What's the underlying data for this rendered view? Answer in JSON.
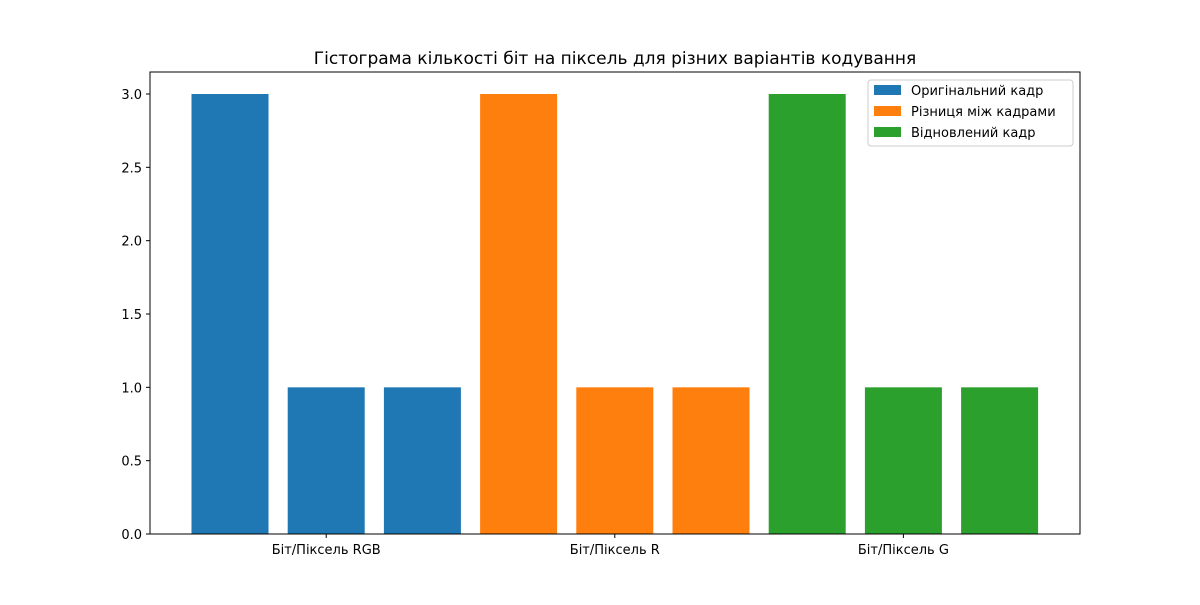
{
  "chart_data": {
    "type": "bar",
    "title": "Гістограма кількості біт на піксель для різних варіантів кодування",
    "xlabel": "",
    "ylabel": "",
    "ylim": [
      0,
      3.15
    ],
    "yticks": [
      "0.0",
      "0.5",
      "1.0",
      "1.5",
      "2.0",
      "2.5",
      "3.0"
    ],
    "ytick_values": [
      0,
      0.5,
      1.0,
      1.5,
      2.0,
      2.5,
      3.0
    ],
    "categories": [
      "Біт/Піксель RGB",
      "Біт/Піксель R",
      "Біт/Піксель G"
    ],
    "legend_position": "top-right",
    "grid": false,
    "series": [
      {
        "name": "Оригінальний кадр",
        "color": "#1f77b4",
        "values": [
          3,
          1,
          1
        ]
      },
      {
        "name": "Різниця між кадрами",
        "color": "#ff7f0e",
        "values": [
          3,
          1,
          1
        ]
      },
      {
        "name": "Відновлений кадр",
        "color": "#2ca02c",
        "values": [
          3,
          1,
          1
        ]
      }
    ]
  }
}
